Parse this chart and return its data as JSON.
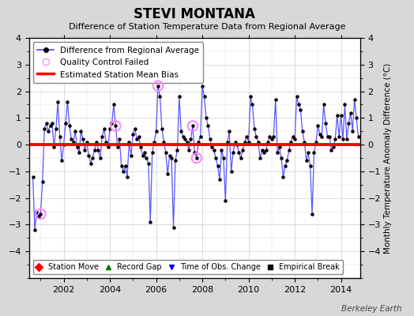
{
  "title": "STEVI MONTANA",
  "subtitle": "Difference of Station Temperature Data from Regional Average",
  "ylabel": "Monthly Temperature Anomaly Difference (°C)",
  "bias_value": 0.0,
  "ylim": [
    -5,
    4
  ],
  "xlim": [
    2000.5,
    2014.83
  ],
  "yticks": [
    -4,
    -3,
    -2,
    -1,
    0,
    1,
    2,
    3,
    4
  ],
  "xticks": [
    2002,
    2004,
    2006,
    2008,
    2010,
    2012,
    2014
  ],
  "background_color": "#d8d8d8",
  "plot_bg_color": "#ffffff",
  "line_color": "#4444ff",
  "dot_color": "#000000",
  "bias_color": "#ff0000",
  "qc_fail_color": "#ff88ff",
  "watermark": "Berkeley Earth",
  "x_data": [
    2000.667,
    2000.75,
    2000.833,
    2000.917,
    2001.0,
    2001.083,
    2001.167,
    2001.25,
    2001.333,
    2001.417,
    2001.5,
    2001.583,
    2001.667,
    2001.75,
    2001.833,
    2001.917,
    2002.0,
    2002.083,
    2002.167,
    2002.25,
    2002.333,
    2002.417,
    2002.5,
    2002.583,
    2002.667,
    2002.75,
    2002.833,
    2002.917,
    2003.0,
    2003.083,
    2003.167,
    2003.25,
    2003.333,
    2003.417,
    2003.5,
    2003.583,
    2003.667,
    2003.75,
    2003.833,
    2003.917,
    2004.0,
    2004.083,
    2004.167,
    2004.25,
    2004.333,
    2004.417,
    2004.5,
    2004.583,
    2004.667,
    2004.75,
    2004.833,
    2004.917,
    2005.0,
    2005.083,
    2005.167,
    2005.25,
    2005.333,
    2005.417,
    2005.5,
    2005.583,
    2005.667,
    2005.75,
    2005.833,
    2005.917,
    2006.0,
    2006.083,
    2006.167,
    2006.25,
    2006.333,
    2006.417,
    2006.5,
    2006.583,
    2006.667,
    2006.75,
    2006.833,
    2006.917,
    2007.0,
    2007.083,
    2007.167,
    2007.25,
    2007.333,
    2007.417,
    2007.5,
    2007.583,
    2007.667,
    2007.75,
    2007.833,
    2007.917,
    2008.0,
    2008.083,
    2008.167,
    2008.25,
    2008.333,
    2008.417,
    2008.5,
    2008.583,
    2008.667,
    2008.75,
    2008.833,
    2008.917,
    2009.0,
    2009.083,
    2009.167,
    2009.25,
    2009.333,
    2009.417,
    2009.5,
    2009.583,
    2009.667,
    2009.75,
    2009.833,
    2009.917,
    2010.0,
    2010.083,
    2010.167,
    2010.25,
    2010.333,
    2010.417,
    2010.5,
    2010.583,
    2010.667,
    2010.75,
    2010.833,
    2010.917,
    2011.0,
    2011.083,
    2011.167,
    2011.25,
    2011.333,
    2011.417,
    2011.5,
    2011.583,
    2011.667,
    2011.75,
    2011.833,
    2011.917,
    2012.0,
    2012.083,
    2012.167,
    2012.25,
    2012.333,
    2012.417,
    2012.5,
    2012.583,
    2012.667,
    2012.75,
    2012.833,
    2012.917,
    2013.0,
    2013.083,
    2013.167,
    2013.25,
    2013.333,
    2013.417,
    2013.5,
    2013.583,
    2013.667,
    2013.75,
    2013.833,
    2013.917,
    2014.0,
    2014.083,
    2014.167,
    2014.25,
    2014.333,
    2014.417,
    2014.5,
    2014.583,
    2014.667,
    2014.75
  ],
  "y_data": [
    -1.2,
    -3.2,
    -2.5,
    -2.7,
    -2.6,
    -1.4,
    0.6,
    0.8,
    0.5,
    0.7,
    0.8,
    -0.1,
    0.6,
    1.6,
    0.3,
    -0.6,
    0.0,
    0.8,
    1.6,
    0.7,
    0.2,
    0.1,
    0.5,
    -0.1,
    -0.3,
    0.5,
    0.2,
    -0.2,
    0.1,
    -0.4,
    -0.7,
    -0.5,
    -0.2,
    0.1,
    -0.2,
    -0.5,
    0.3,
    0.6,
    0.1,
    -0.1,
    0.6,
    0.8,
    1.5,
    0.7,
    -0.1,
    0.2,
    -0.8,
    -1.0,
    -0.8,
    -1.2,
    0.1,
    -0.4,
    0.4,
    0.6,
    0.2,
    0.3,
    -0.1,
    -0.4,
    -0.3,
    -0.5,
    -0.7,
    -2.9,
    -0.3,
    0.1,
    0.5,
    2.2,
    1.8,
    0.6,
    0.1,
    -0.3,
    -1.1,
    -0.4,
    -0.5,
    -3.1,
    -0.6,
    -0.2,
    1.8,
    0.5,
    0.3,
    0.2,
    0.1,
    -0.2,
    0.2,
    0.7,
    -0.3,
    -0.5,
    0.1,
    0.3,
    2.2,
    1.8,
    1.0,
    0.7,
    0.2,
    -0.1,
    -0.2,
    -0.5,
    -0.8,
    -1.3,
    -0.2,
    -0.5,
    -2.1,
    0.1,
    0.5,
    -1.0,
    -0.3,
    0.1,
    0.0,
    -0.3,
    -0.5,
    -0.2,
    0.1,
    0.3,
    0.1,
    1.8,
    1.5,
    0.6,
    0.3,
    0.1,
    -0.5,
    -0.2,
    -0.3,
    -0.2,
    0.1,
    0.3,
    0.2,
    0.3,
    1.7,
    -0.3,
    -0.1,
    -0.5,
    -1.2,
    -0.8,
    -0.6,
    -0.2,
    0.1,
    0.3,
    0.2,
    1.8,
    1.5,
    1.3,
    0.5,
    0.1,
    -0.6,
    -0.3,
    -0.8,
    -2.6,
    -0.3,
    0.1,
    0.7,
    0.4,
    0.3,
    1.5,
    0.8,
    0.3,
    0.3,
    -0.2,
    -0.1,
    0.2,
    1.1,
    0.3,
    1.1,
    0.2,
    1.5,
    0.2,
    0.8,
    1.2,
    0.5,
    1.7,
    1.0,
    0.3
  ],
  "qc_fail_x": [
    2001.0,
    2004.25,
    2006.083,
    2007.583,
    2007.75
  ],
  "qc_fail_y": [
    -2.6,
    0.7,
    2.2,
    0.7,
    -0.5
  ]
}
